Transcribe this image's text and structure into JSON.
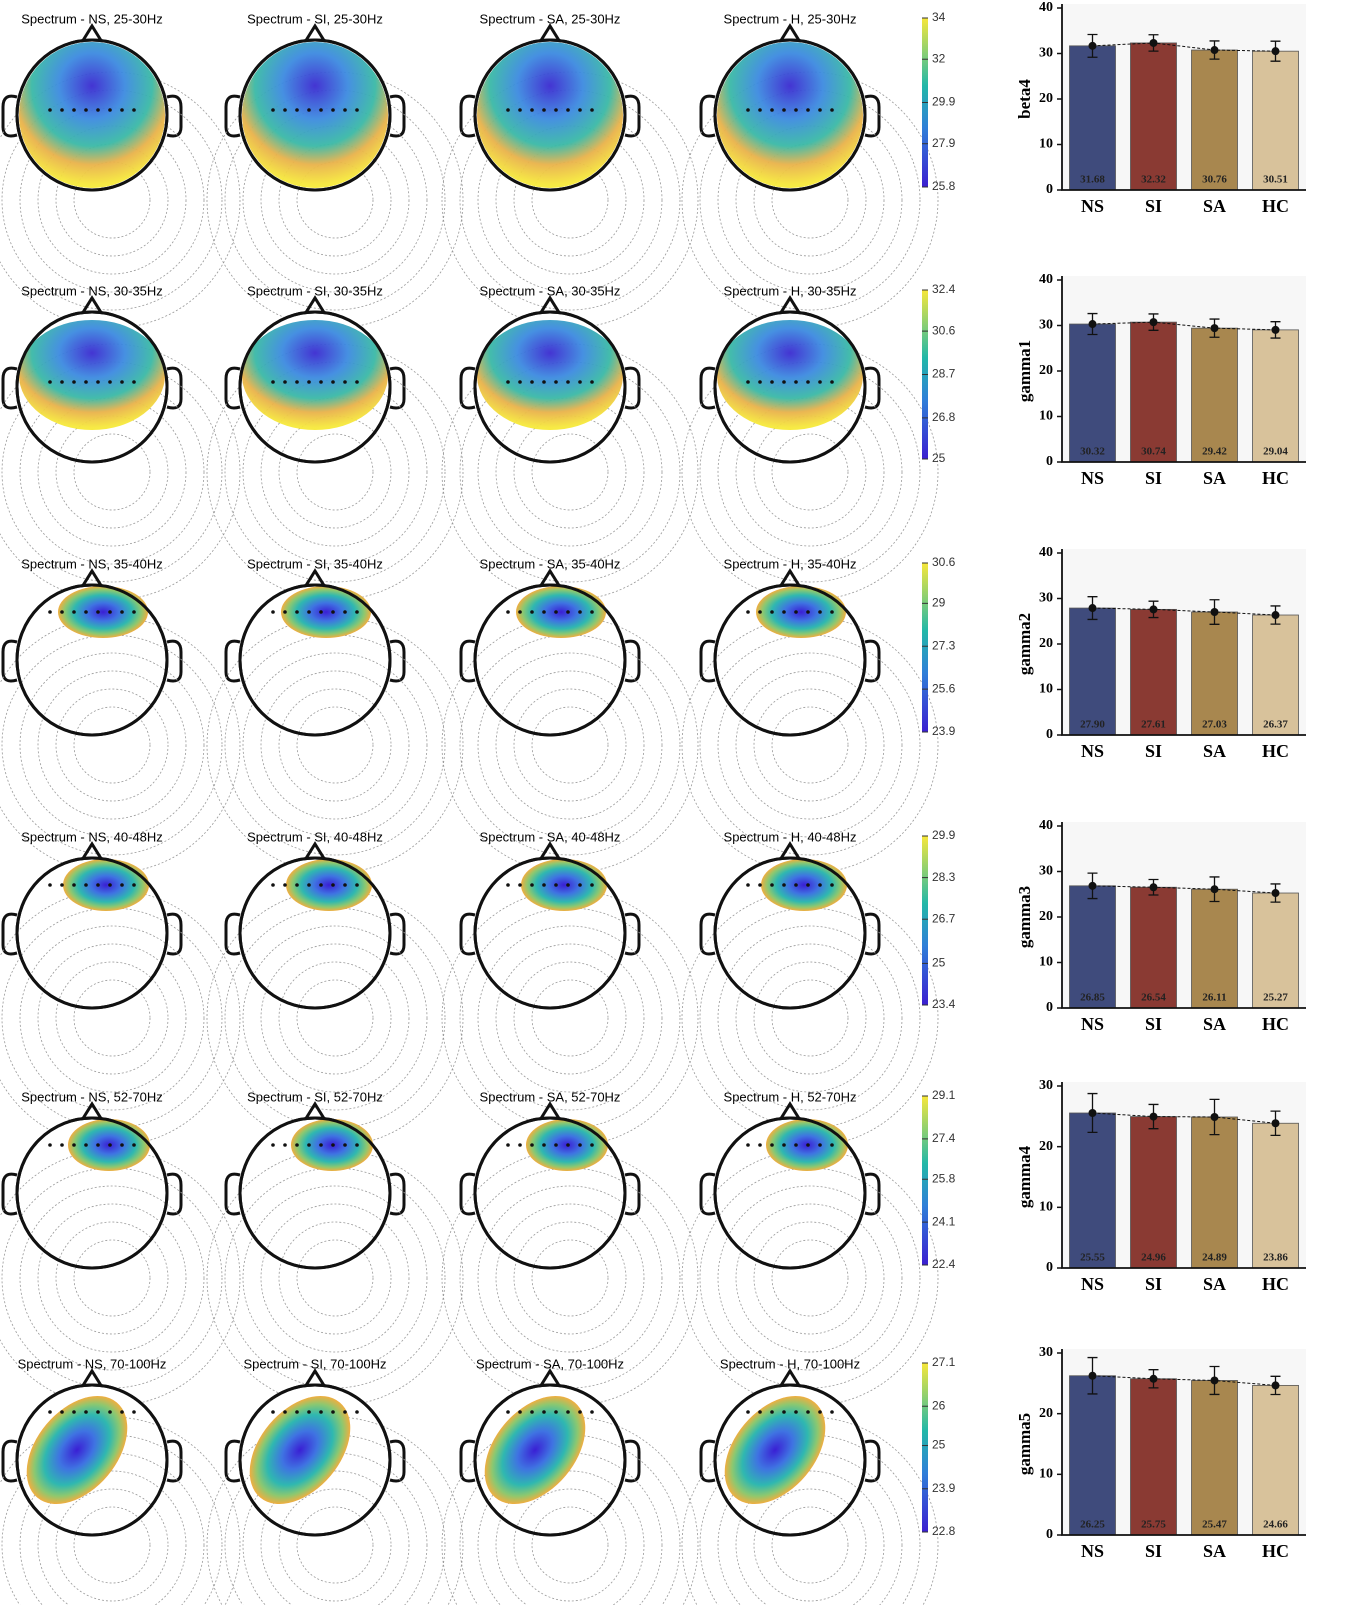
{
  "rows": [
    {
      "maps": [
        "Spectrum - NS, 25-30Hz",
        "Spectrum - SI, 25-30Hz",
        "Spectrum - SA, 25-30Hz",
        "Spectrum - H, 25-30Hz"
      ],
      "colorbar": {
        "lim": [
          25.8,
          34
        ],
        "ticks": [
          25.8,
          27.9,
          29.9,
          32,
          34
        ]
      }
    },
    {
      "maps": [
        "Spectrum - NS, 30-35Hz",
        "Spectrum - SI, 30-35Hz",
        "Spectrum - SA, 30-35Hz",
        "Spectrum - H, 30-35Hz"
      ],
      "colorbar": {
        "lim": [
          25,
          32.4
        ],
        "ticks": [
          25,
          26.8,
          28.7,
          30.6,
          32.4
        ]
      }
    },
    {
      "maps": [
        "Spectrum - NS, 35-40Hz",
        "Spectrum - SI, 35-40Hz",
        "Spectrum - SA, 35-40Hz",
        "Spectrum - H, 35-40Hz"
      ],
      "colorbar": {
        "lim": [
          23.9,
          30.6
        ],
        "ticks": [
          23.9,
          25.6,
          27.3,
          29,
          30.6
        ]
      }
    },
    {
      "maps": [
        "Spectrum - NS, 40-48Hz",
        "Spectrum - SI, 40-48Hz",
        "Spectrum - SA, 40-48Hz",
        "Spectrum - H, 40-48Hz"
      ],
      "colorbar": {
        "lim": [
          23.4,
          29.9
        ],
        "ticks": [
          23.4,
          25,
          26.7,
          28.3,
          29.9
        ]
      }
    },
    {
      "maps": [
        "Spectrum - NS, 52-70Hz",
        "Spectrum - SI, 52-70Hz",
        "Spectrum - SA, 52-70Hz",
        "Spectrum - H, 52-70Hz"
      ],
      "colorbar": {
        "lim": [
          22.4,
          29.1
        ],
        "ticks": [
          22.4,
          24.1,
          25.8,
          27.4,
          29.1
        ]
      }
    },
    {
      "maps": [
        "Spectrum - NS, 70-100Hz",
        "Spectrum - SI, 70-100Hz",
        "Spectrum - SA, 70-100Hz",
        "Spectrum - H, 70-100Hz"
      ],
      "colorbar": {
        "lim": [
          22.8,
          27.1
        ],
        "ticks": [
          22.8,
          23.9,
          25,
          26,
          27.1
        ]
      }
    }
  ],
  "chart_data": [
    {
      "type": "bar",
      "ylabel": "beta4",
      "categories": [
        "NS",
        "SI",
        "SA",
        "HC"
      ],
      "colors": [
        "#3f4b7c",
        "#8a3a33",
        "#a8874f",
        "#d8c29b"
      ],
      "values": [
        31.68,
        32.32,
        30.76,
        30.51
      ],
      "value_labels": [
        "31.68",
        "32.32",
        "30.76",
        "30.51"
      ],
      "errors": [
        2.5,
        1.8,
        2,
        2.2
      ],
      "ylim": [
        0,
        40
      ],
      "yticks": [
        0,
        10,
        20,
        30,
        40
      ]
    },
    {
      "type": "bar",
      "ylabel": "gamma1",
      "categories": [
        "NS",
        "SI",
        "SA",
        "HC"
      ],
      "colors": [
        "#3f4b7c",
        "#8a3a33",
        "#a8874f",
        "#d8c29b"
      ],
      "values": [
        30.32,
        30.74,
        29.42,
        29.04
      ],
      "value_labels": [
        "30.32",
        "30.74",
        "29.42",
        "29.04"
      ],
      "errors": [
        2.3,
        1.8,
        2,
        1.8
      ],
      "ylim": [
        0,
        40
      ],
      "yticks": [
        0,
        10,
        20,
        30,
        40
      ]
    },
    {
      "type": "bar",
      "ylabel": "gamma2",
      "categories": [
        "NS",
        "SI",
        "SA",
        "HC"
      ],
      "colors": [
        "#3f4b7c",
        "#8a3a33",
        "#a8874f",
        "#d8c29b"
      ],
      "values": [
        27.9,
        27.61,
        27.03,
        26.37
      ],
      "value_labels": [
        "27.90",
        "27.61",
        "27.03",
        "26.37"
      ],
      "errors": [
        2.5,
        1.8,
        2.7,
        2
      ],
      "ylim": [
        0,
        40
      ],
      "yticks": [
        0,
        10,
        20,
        30,
        40
      ]
    },
    {
      "type": "bar",
      "ylabel": "gamma3",
      "categories": [
        "NS",
        "SI",
        "SA",
        "HC"
      ],
      "colors": [
        "#3f4b7c",
        "#8a3a33",
        "#a8874f",
        "#d8c29b"
      ],
      "values": [
        26.85,
        26.54,
        26.11,
        25.27
      ],
      "value_labels": [
        "26.85",
        "26.54",
        "26.11",
        "25.27"
      ],
      "errors": [
        2.8,
        1.7,
        2.7,
        2
      ],
      "ylim": [
        0,
        40
      ],
      "yticks": [
        0,
        10,
        20,
        30,
        40
      ]
    },
    {
      "type": "bar",
      "ylabel": "gamma4",
      "categories": [
        "NS",
        "SI",
        "SA",
        "HC"
      ],
      "colors": [
        "#3f4b7c",
        "#8a3a33",
        "#a8874f",
        "#d8c29b"
      ],
      "values": [
        25.55,
        24.96,
        24.89,
        23.86
      ],
      "value_labels": [
        "25.55",
        "24.96",
        "24.89",
        "23.86"
      ],
      "errors": [
        3.2,
        2,
        2.9,
        2
      ],
      "ylim": [
        0,
        30
      ],
      "yticks": [
        0,
        10,
        20,
        30
      ]
    },
    {
      "type": "bar",
      "ylabel": "gamma5",
      "categories": [
        "NS",
        "SI",
        "SA",
        "HC"
      ],
      "colors": [
        "#3f4b7c",
        "#8a3a33",
        "#a8874f",
        "#d8c29b"
      ],
      "values": [
        26.25,
        25.75,
        25.47,
        24.66
      ],
      "value_labels": [
        "26.25",
        "25.75",
        "25.47",
        "24.66"
      ],
      "errors": [
        3,
        1.5,
        2.3,
        1.5
      ],
      "ylim": [
        0,
        30
      ],
      "yticks": [
        0,
        10,
        20,
        30
      ]
    }
  ]
}
